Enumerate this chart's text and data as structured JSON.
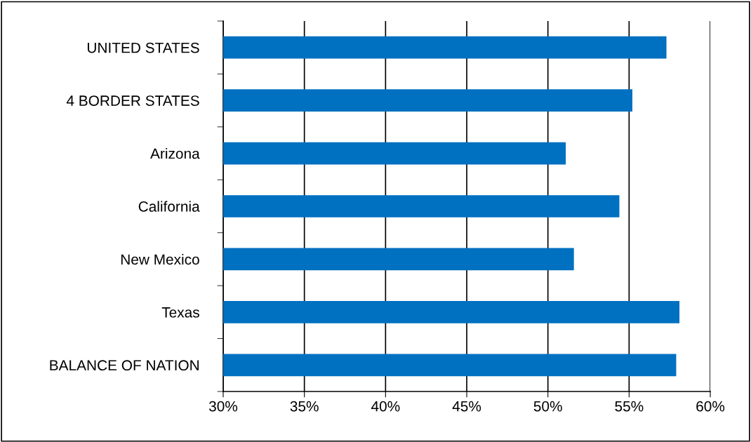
{
  "chart_data": {
    "type": "bar",
    "orientation": "horizontal",
    "categories": [
      "UNITED STATES",
      "4 BORDER STATES",
      "Arizona",
      "California",
      "New Mexico",
      "Texas",
      "BALANCE OF NATION"
    ],
    "values": [
      57.3,
      55.2,
      51.1,
      54.4,
      51.6,
      58.1,
      57.9
    ],
    "color": "#0070c0",
    "xlim": [
      30,
      60
    ],
    "xticks": [
      {
        "value": 30,
        "label": "30%"
      },
      {
        "value": 35,
        "label": "35%"
      },
      {
        "value": 40,
        "label": "40%"
      },
      {
        "value": 45,
        "label": "45%"
      },
      {
        "value": 50,
        "label": "50%"
      },
      {
        "value": 55,
        "label": "55%"
      },
      {
        "value": 60,
        "label": "60%"
      }
    ],
    "grid": "x",
    "legend": false
  }
}
